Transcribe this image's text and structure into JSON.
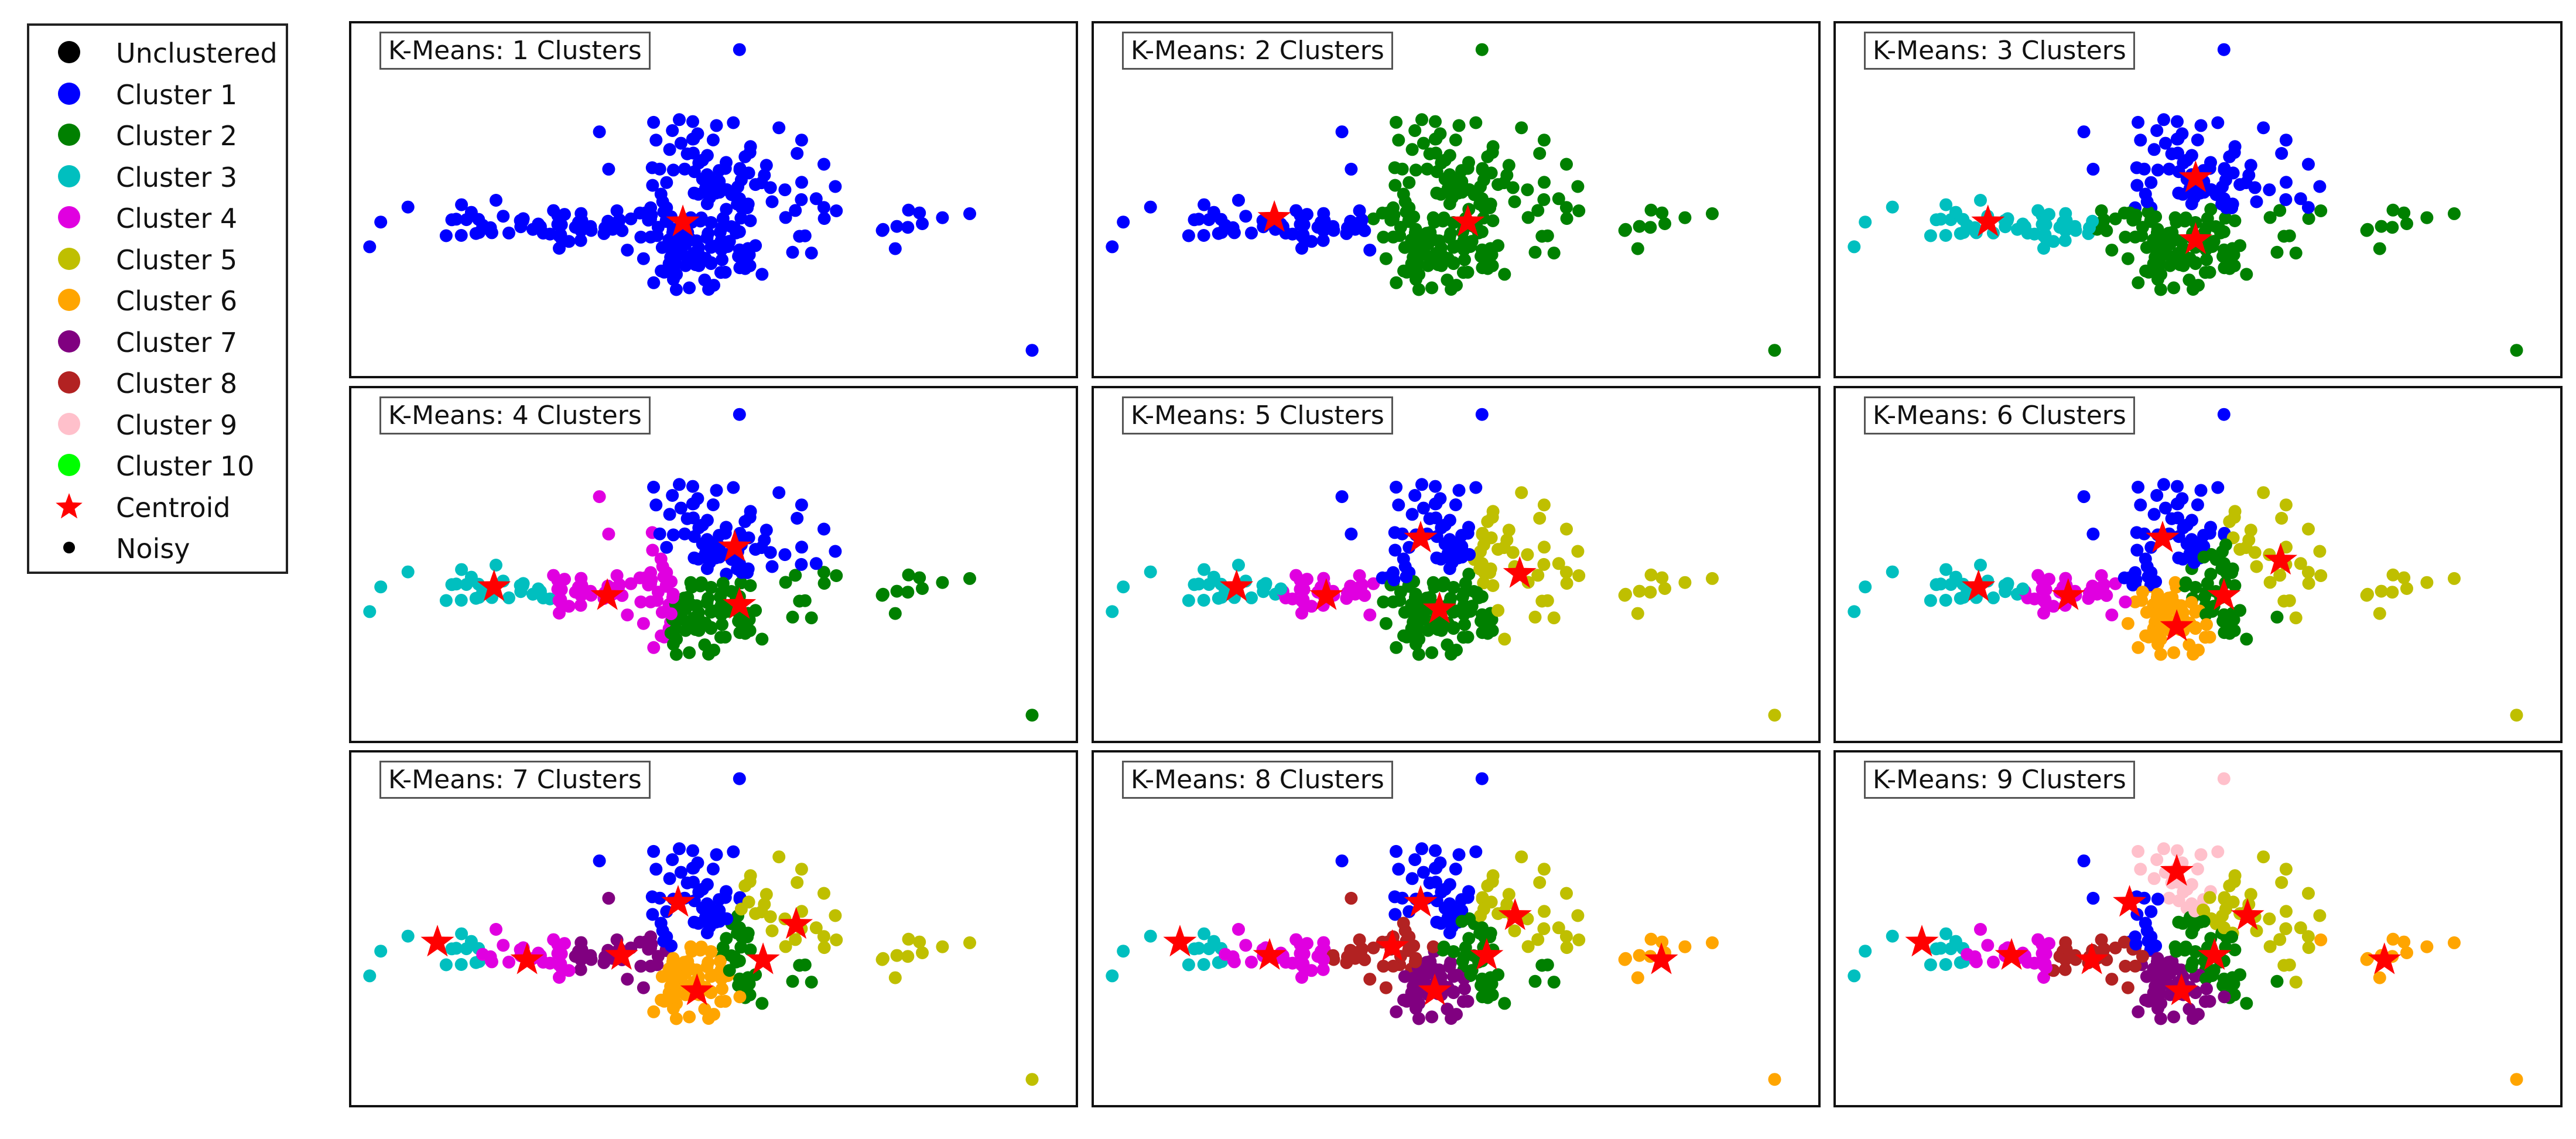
{
  "legend": {
    "items": [
      {
        "label": "Unclustered",
        "color": "#000000",
        "marker": "dot"
      },
      {
        "label": "Cluster 1",
        "color": "#0000ff",
        "marker": "dot"
      },
      {
        "label": "Cluster 2",
        "color": "#008000",
        "marker": "dot"
      },
      {
        "label": "Cluster 3",
        "color": "#00bfbf",
        "marker": "dot"
      },
      {
        "label": "Cluster 4",
        "color": "#e000e0",
        "marker": "dot"
      },
      {
        "label": "Cluster 5",
        "color": "#bfbf00",
        "marker": "dot"
      },
      {
        "label": "Cluster 6",
        "color": "#ffa500",
        "marker": "dot"
      },
      {
        "label": "Cluster 7",
        "color": "#800080",
        "marker": "dot"
      },
      {
        "label": "Cluster 8",
        "color": "#b22222",
        "marker": "dot"
      },
      {
        "label": "Cluster 9",
        "color": "#ffc0cb",
        "marker": "dot"
      },
      {
        "label": "Cluster 10",
        "color": "#00ff00",
        "marker": "dot"
      },
      {
        "label": "Centroid",
        "color": "#ff0000",
        "marker": "star"
      },
      {
        "label": "Noisy",
        "color": "#000000",
        "marker": "small-dot"
      }
    ]
  },
  "chart_data": [
    {
      "type": "scatter",
      "title": "K-Means: 1 Clusters",
      "k": 1,
      "centroids": [
        {
          "cluster": 1,
          "x": 0.0,
          "y": 0.0
        }
      ]
    },
    {
      "type": "scatter",
      "title": "K-Means: 2 Clusters",
      "k": 2,
      "centroids": [
        {
          "cluster": 1,
          "x": -1.6,
          "y": 0.05
        },
        {
          "cluster": 2,
          "x": 0.45,
          "y": 0.0
        }
      ]
    },
    {
      "type": "scatter",
      "title": "K-Means: 3 Clusters",
      "k": 3,
      "centroids": [
        {
          "cluster": 1,
          "x": 0.3,
          "y": 0.5
        },
        {
          "cluster": 2,
          "x": 0.3,
          "y": -0.2
        },
        {
          "cluster": 3,
          "x": -1.9,
          "y": 0.0
        }
      ]
    },
    {
      "type": "scatter",
      "title": "K-Means: 4 Clusters",
      "k": 4,
      "centroids": [
        {
          "cluster": 1,
          "x": 0.55,
          "y": 0.45
        },
        {
          "cluster": 2,
          "x": 0.6,
          "y": -0.2
        },
        {
          "cluster": 3,
          "x": -2.0,
          "y": 0.0
        },
        {
          "cluster": 4,
          "x": -0.8,
          "y": -0.1
        }
      ]
    },
    {
      "type": "scatter",
      "title": "K-Means: 5 Clusters",
      "k": 5,
      "centroids": [
        {
          "cluster": 1,
          "x": -0.05,
          "y": 0.55
        },
        {
          "cluster": 2,
          "x": 0.15,
          "y": -0.25
        },
        {
          "cluster": 3,
          "x": -2.0,
          "y": 0.0
        },
        {
          "cluster": 4,
          "x": -1.05,
          "y": -0.1
        },
        {
          "cluster": 5,
          "x": 1.0,
          "y": 0.15
        }
      ]
    },
    {
      "type": "scatter",
      "title": "K-Means: 6 Clusters",
      "k": 6,
      "centroids": [
        {
          "cluster": 1,
          "x": -0.05,
          "y": 0.55
        },
        {
          "cluster": 2,
          "x": 0.6,
          "y": -0.1
        },
        {
          "cluster": 3,
          "x": -2.0,
          "y": 0.0
        },
        {
          "cluster": 4,
          "x": -1.05,
          "y": -0.1
        },
        {
          "cluster": 5,
          "x": 1.2,
          "y": 0.3
        },
        {
          "cluster": 6,
          "x": 0.1,
          "y": -0.45
        }
      ]
    },
    {
      "type": "scatter",
      "title": "K-Means: 7 Clusters",
      "k": 7,
      "centroids": [
        {
          "cluster": 1,
          "x": -0.05,
          "y": 0.55
        },
        {
          "cluster": 2,
          "x": 0.85,
          "y": -0.1
        },
        {
          "cluster": 3,
          "x": -2.6,
          "y": 0.1
        },
        {
          "cluster": 4,
          "x": -1.65,
          "y": -0.1
        },
        {
          "cluster": 5,
          "x": 1.2,
          "y": 0.3
        },
        {
          "cluster": 6,
          "x": 0.15,
          "y": -0.45
        },
        {
          "cluster": 7,
          "x": -0.65,
          "y": -0.05
        }
      ]
    },
    {
      "type": "scatter",
      "title": "K-Means: 8 Clusters",
      "k": 8,
      "centroids": [
        {
          "cluster": 1,
          "x": -0.05,
          "y": 0.55
        },
        {
          "cluster": 2,
          "x": 0.65,
          "y": -0.05
        },
        {
          "cluster": 3,
          "x": -2.6,
          "y": 0.1
        },
        {
          "cluster": 4,
          "x": -1.65,
          "y": -0.05
        },
        {
          "cluster": 5,
          "x": 0.95,
          "y": 0.4
        },
        {
          "cluster": 6,
          "x": 2.5,
          "y": -0.1
        },
        {
          "cluster": 7,
          "x": 0.1,
          "y": -0.45
        },
        {
          "cluster": 8,
          "x": -0.35,
          "y": 0.05
        }
      ]
    },
    {
      "type": "scatter",
      "title": "K-Means: 9 Clusters",
      "k": 9,
      "centroids": [
        {
          "cluster": 1,
          "x": -0.4,
          "y": 0.55
        },
        {
          "cluster": 2,
          "x": 0.5,
          "y": -0.05
        },
        {
          "cluster": 3,
          "x": -2.6,
          "y": 0.1
        },
        {
          "cluster": 4,
          "x": -1.65,
          "y": -0.05
        },
        {
          "cluster": 5,
          "x": 0.85,
          "y": 0.4
        },
        {
          "cluster": 6,
          "x": 2.3,
          "y": -0.1
        },
        {
          "cluster": 7,
          "x": 0.15,
          "y": -0.45
        },
        {
          "cluster": 8,
          "x": -0.8,
          "y": -0.1
        },
        {
          "cluster": 9,
          "x": 0.1,
          "y": 0.9
        }
      ]
    }
  ]
}
